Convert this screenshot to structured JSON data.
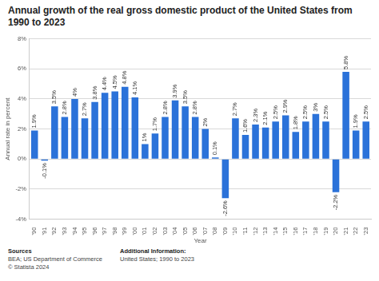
{
  "chart_data": {
    "type": "bar",
    "title": "Annual growth of the real gross domestic product of the United States from 1990 to 2023",
    "x_label": "Year",
    "y_label": "Annual rate in percent",
    "categories": [
      "'90",
      "'91",
      "'92",
      "'93",
      "'94",
      "'95",
      "'96",
      "'97",
      "'98",
      "'99",
      "'00",
      "'01",
      "'02",
      "'03",
      "'04",
      "'05",
      "'06",
      "'07",
      "'08",
      "'09",
      "'10",
      "'11",
      "'12",
      "'13",
      "'14",
      "'15",
      "'16",
      "'17",
      "'18",
      "'19",
      "'20",
      "'21",
      "'22",
      "'23"
    ],
    "values": [
      1.9,
      -0.1,
      3.5,
      2.8,
      4,
      2.7,
      3.8,
      4.4,
      4.5,
      4.8,
      4.1,
      1,
      1.7,
      2.8,
      3.9,
      3.5,
      2.8,
      2,
      0.1,
      -2.6,
      2.7,
      1.6,
      2.3,
      2.1,
      2.5,
      2.9,
      1.8,
      2.5,
      3,
      2.5,
      -2.2,
      5.8,
      1.9,
      2.5
    ],
    "value_labels": [
      "1.9%",
      "-0.1%",
      "3.5%",
      "2.8%",
      "4%",
      "2.7%",
      "3.8%",
      "4.4%",
      "4.5%",
      "4.8%",
      "4.1%",
      "1%",
      "1.7%",
      "2.8%",
      "3.9%",
      "3.5%",
      "2.8%",
      "2%",
      "0.1%",
      "-2.6%",
      "2.7%",
      "1.6%",
      "2.3%",
      "2.1%",
      "2.5%",
      "2.9%",
      "1.8%",
      "2.5%",
      "3%",
      "2.5%",
      "-2.2%",
      "5.8%",
      "1.9%",
      "2.5%"
    ],
    "data_labels": true,
    "color": "#2b72d9",
    "ylim": [
      -4,
      8
    ],
    "yticks": [
      {
        "value": -4,
        "label": "-4%"
      },
      {
        "value": -2,
        "label": "-2%"
      },
      {
        "value": 0,
        "label": "0%"
      },
      {
        "value": 2,
        "label": "2%"
      },
      {
        "value": 4,
        "label": "4%"
      },
      {
        "value": 6,
        "label": "6%"
      },
      {
        "value": 8,
        "label": "8%"
      }
    ],
    "grid": true,
    "footer": {
      "left": [
        "Sources",
        "BEA; US Department of Commerce",
        "© Statista 2024"
      ],
      "right": [
        "Additional Information:",
        "United States; 1990 to 2023"
      ]
    }
  }
}
